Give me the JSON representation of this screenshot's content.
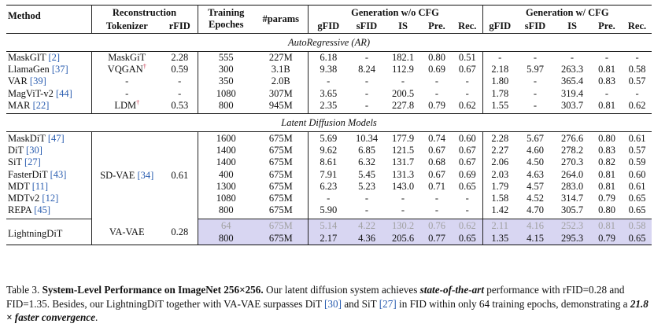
{
  "header": {
    "method": "Method",
    "reconstruction": "Reconstruction",
    "tokenizer": "Tokenizer",
    "rfid": "rFID",
    "training": "Training",
    "epoches": "Epoches",
    "params": "#params",
    "gen_wo_cfg": "Generation w/o CFG",
    "gen_w_cfg": "Generation w/ CFG",
    "gfid": "gFID",
    "sfid": "sFID",
    "is": "IS",
    "pre": "Pre.",
    "rec": "Rec."
  },
  "sections": {
    "ar": "AutoRegressive (AR)",
    "ldm": "Latent Diffusion Models"
  },
  "ar_rows": [
    {
      "name": "MaskGIT",
      "cite": "[2]",
      "tok": "MaskGiT",
      "tok_dag": "",
      "rfid": "2.28",
      "ep": "555",
      "params": "227M",
      "a": [
        "6.18",
        "-",
        "182.1",
        "0.80",
        "0.51"
      ],
      "b": [
        "-",
        "-",
        "-",
        "-",
        "-"
      ]
    },
    {
      "name": "LlamaGen",
      "cite": "[37]",
      "tok": "VQGAN",
      "tok_dag": "†",
      "rfid": "0.59",
      "ep": "300",
      "params": "3.1B",
      "a": [
        "9.38",
        "8.24",
        "112.9",
        "0.69",
        "0.67"
      ],
      "b": [
        "2.18",
        "5.97",
        "263.3",
        "0.81",
        "0.58"
      ]
    },
    {
      "name": "VAR",
      "cite": "[39]",
      "tok": "-",
      "tok_dag": "",
      "rfid": "-",
      "ep": "350",
      "params": "2.0B",
      "a": [
        "-",
        "-",
        "-",
        "-",
        "-"
      ],
      "b": [
        "1.80",
        "-",
        "365.4",
        "0.83",
        "0.57"
      ]
    },
    {
      "name": "MagViT-v2",
      "cite": "[44]",
      "tok": "-",
      "tok_dag": "",
      "rfid": "-",
      "ep": "1080",
      "params": "307M",
      "a": [
        "3.65",
        "-",
        "200.5",
        "-",
        "-"
      ],
      "b": [
        "1.78",
        "-",
        "319.4",
        "-",
        "-"
      ]
    },
    {
      "name": "MAR",
      "cite": "[22]",
      "tok": "LDM",
      "tok_dag": "†",
      "rfid": "0.53",
      "ep": "800",
      "params": "945M",
      "a": [
        "2.35",
        "-",
        "227.8",
        "0.79",
        "0.62"
      ],
      "b": [
        "1.55",
        "-",
        "303.7",
        "0.81",
        "0.62"
      ]
    }
  ],
  "ldm_tokenizer": {
    "name": "SD-VAE",
    "cite": "[34]",
    "rfid": "0.61"
  },
  "ldm_rows": [
    {
      "name": "MaskDiT",
      "cite": "[47]",
      "ep": "1600",
      "params": "675M",
      "a": [
        "5.69",
        "10.34",
        "177.9",
        "0.74",
        "0.60"
      ],
      "b": [
        "2.28",
        "5.67",
        "276.6",
        "0.80",
        "0.61"
      ]
    },
    {
      "name": "DiT",
      "cite": "[30]",
      "ep": "1400",
      "params": "675M",
      "a": [
        "9.62",
        "6.85",
        "121.5",
        "0.67",
        "0.67"
      ],
      "b": [
        "2.27",
        "4.60",
        "278.2",
        "0.83",
        "0.57"
      ]
    },
    {
      "name": "SiT",
      "cite": "[27]",
      "ep": "1400",
      "params": "675M",
      "a": [
        "8.61",
        "6.32",
        "131.7",
        "0.68",
        "0.67"
      ],
      "b": [
        "2.06",
        "4.50",
        "270.3",
        "0.82",
        "0.59"
      ]
    },
    {
      "name": "FasterDiT",
      "cite": "[43]",
      "ep": "400",
      "params": "675M",
      "a": [
        "7.91",
        "5.45",
        "131.3",
        "0.67",
        "0.69"
      ],
      "b": [
        "2.03",
        "4.63",
        "264.0",
        "0.81",
        "0.60"
      ]
    },
    {
      "name": "MDT",
      "cite": "[11]",
      "ep": "1300",
      "params": "675M",
      "a": [
        "6.23",
        "5.23",
        "143.0",
        "0.71",
        "0.65"
      ],
      "b": [
        "1.79",
        "4.57",
        "283.0",
        "0.81",
        "0.61"
      ]
    },
    {
      "name": "MDTv2",
      "cite": "[12]",
      "ep": "1080",
      "params": "675M",
      "a": [
        "-",
        "-",
        "-",
        "-",
        "-"
      ],
      "b": [
        "1.58",
        "4.52",
        "314.7",
        "0.79",
        "0.65"
      ]
    },
    {
      "name": "REPA",
      "cite": "[45]",
      "ep": "800",
      "params": "675M",
      "a": [
        "5.90",
        "-",
        "-",
        "-",
        "-"
      ],
      "b": [
        "1.42",
        "4.70",
        "305.7",
        "0.80",
        "0.65"
      ]
    }
  ],
  "ours": {
    "name": "LightningDiT",
    "tok": "VA-VAE",
    "rfid": "0.28",
    "rows": [
      {
        "ep": "64",
        "params": "675M",
        "a": [
          "5.14",
          "4.22",
          "130.2",
          "0.76",
          "0.62"
        ],
        "b": [
          "2.11",
          "4.16",
          "252.3",
          "0.81",
          "0.58"
        ]
      },
      {
        "ep": "800",
        "params": "675M",
        "a": [
          "2.17",
          "4.36",
          "205.6",
          "0.77",
          "0.65"
        ],
        "b": [
          "1.35",
          "4.15",
          "295.3",
          "0.79",
          "0.65"
        ]
      }
    ]
  },
  "caption": {
    "label": "Table 3.",
    "title": "System-Level Performance on ImageNet 256×256.",
    "t1": " Our latent diffusion system achieves ",
    "em1": "state-of-the-art",
    "t2": " performance with rFID=0.28 and FID=1.35. Besides, our LightningDiT together with VA-VAE surpasses DiT ",
    "c1": "[30]",
    "t3": " and SiT ",
    "c2": "[27]",
    "t4": " in FID within only 64 training epochs, demonstrating a ",
    "em2": "21.8 × faster convergence",
    "t5": "."
  }
}
